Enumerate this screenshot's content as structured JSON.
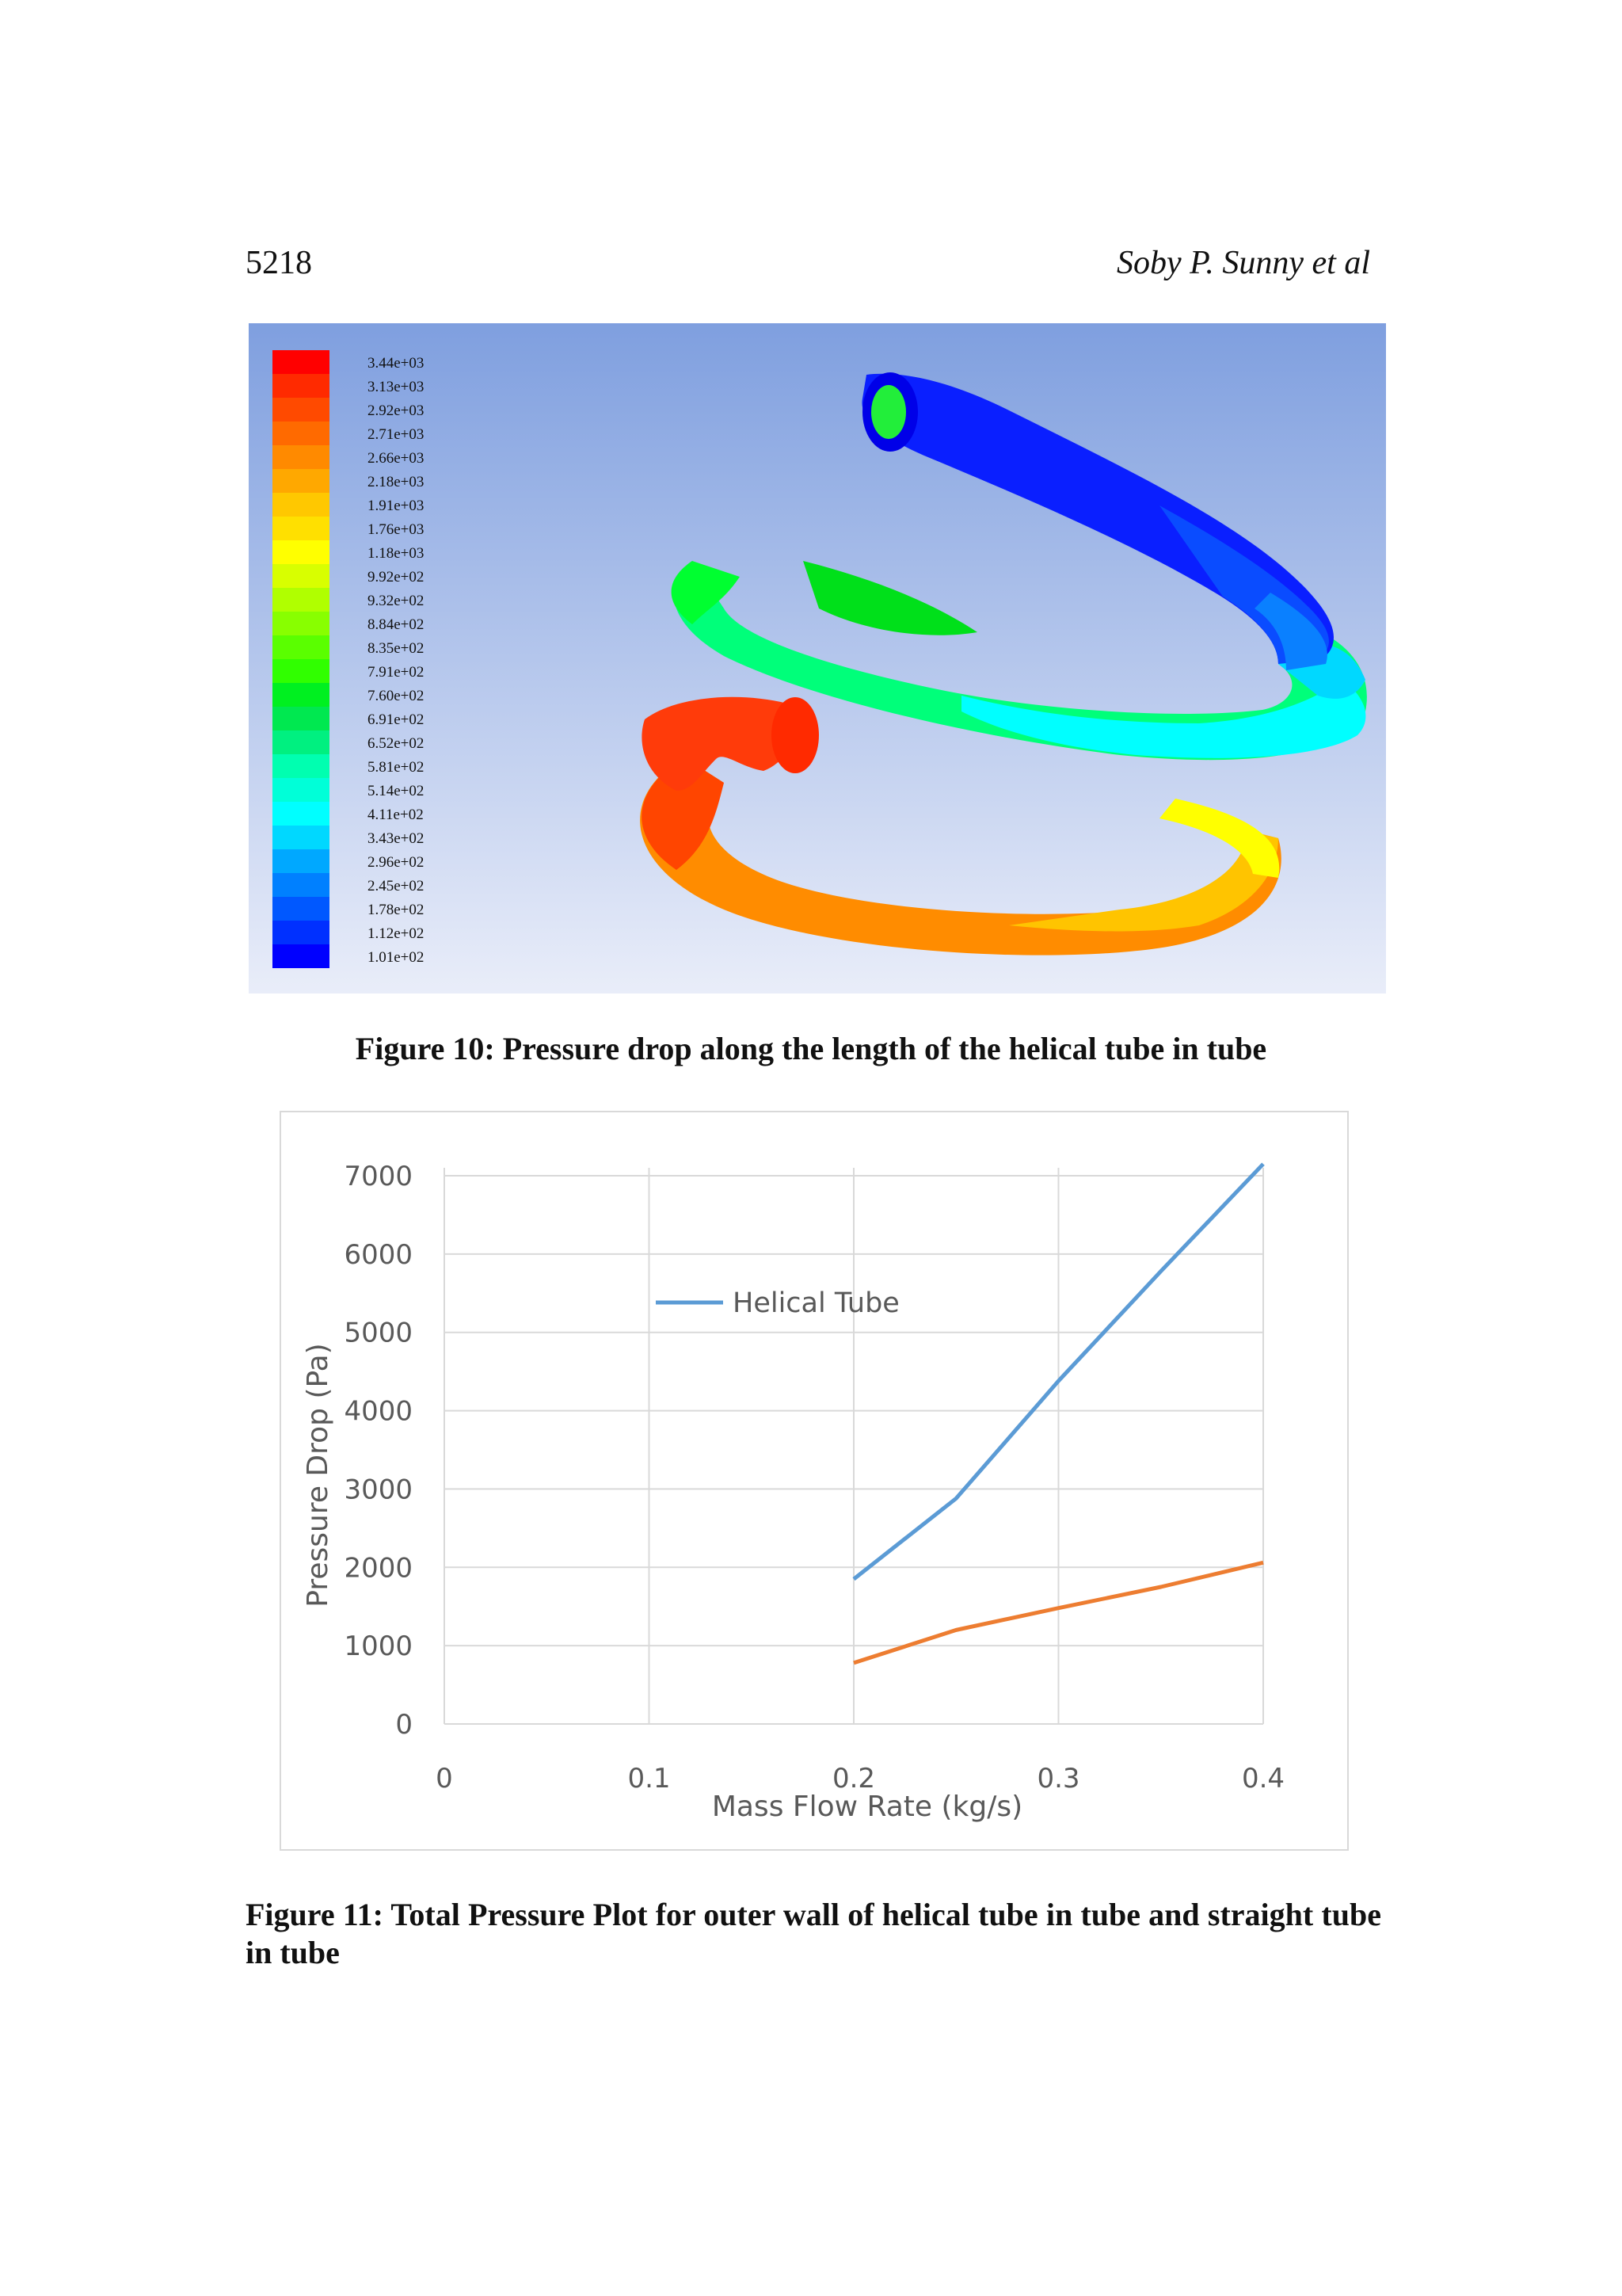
{
  "header": {
    "page_number": "5218",
    "authors": "Soby P. Sunny et al"
  },
  "figure10": {
    "caption": "Figure 10: Pressure drop along the length of the helical tube in tube",
    "colorbar": {
      "labels": [
        "3.44e+03",
        "3.13e+03",
        "2.92e+03",
        "2.71e+03",
        "2.66e+03",
        "2.18e+03",
        "1.91e+03",
        "1.76e+03",
        "1.18e+03",
        "9.92e+02",
        "9.32e+02",
        "8.84e+02",
        "8.35e+02",
        "7.91e+02",
        "7.60e+02",
        "6.91e+02",
        "6.52e+02",
        "5.81e+02",
        "5.14e+02",
        "4.11e+02",
        "3.43e+02",
        "2.96e+02",
        "2.45e+02",
        "1.78e+02",
        "1.12e+02",
        "1.01e+02"
      ],
      "colors": [
        "#ff0000",
        "#ff2a00",
        "#ff4a00",
        "#ff6a00",
        "#ff8a00",
        "#ffa800",
        "#ffc800",
        "#ffe000",
        "#ffff00",
        "#d8ff00",
        "#b0ff00",
        "#88ff00",
        "#5aff00",
        "#30ff00",
        "#00f020",
        "#00e850",
        "#00f080",
        "#00ffb0",
        "#00ffd8",
        "#00ffff",
        "#00d8ff",
        "#00a8ff",
        "#0080ff",
        "#0058ff",
        "#0030ff",
        "#0000ff"
      ]
    }
  },
  "figure11": {
    "caption": "Figure 11: Total Pressure Plot for outer wall of helical tube in tube and straight tube in tube",
    "chart_data": {
      "type": "line",
      "xlabel": "Mass Flow Rate  (kg/s)",
      "ylabel": "Pressure Drop (Pa)",
      "xlim": [
        0,
        0.4
      ],
      "ylim": [
        0,
        7000
      ],
      "x_ticks": [
        0,
        0.1,
        0.2,
        0.3,
        0.4
      ],
      "x_tick_labels": [
        "0",
        "0.1",
        "0.2",
        "0.3",
        "0.4"
      ],
      "y_ticks": [
        0,
        1000,
        2000,
        3000,
        4000,
        5000,
        6000,
        7000
      ],
      "y_tick_labels": [
        "0",
        "1000",
        "2000",
        "3000",
        "4000",
        "5000",
        "6000",
        "7000"
      ],
      "grid": true,
      "legend_position": "top-center",
      "series": [
        {
          "name": "Helical Tube",
          "color": "#5b9bd5",
          "x": [
            0.2,
            0.25,
            0.3,
            0.35,
            0.4
          ],
          "y": [
            1850,
            2880,
            4380,
            5780,
            7150
          ]
        },
        {
          "name": "",
          "color": "#ed7d31",
          "x": [
            0.2,
            0.25,
            0.3,
            0.35,
            0.4
          ],
          "y": [
            780,
            1200,
            1480,
            1750,
            2060
          ]
        }
      ]
    }
  }
}
